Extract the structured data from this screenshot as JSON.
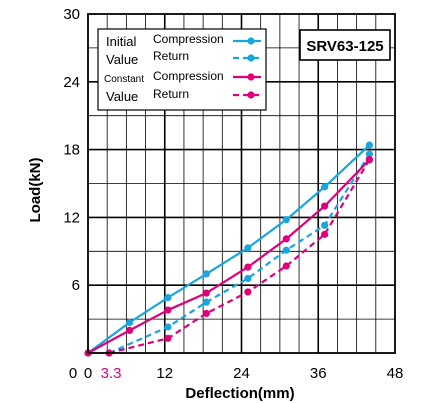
{
  "chart_data": {
    "type": "line",
    "title": "",
    "badge": "SRV63-125",
    "xlabel": "Deflection(mm)",
    "ylabel": "Load(kN)",
    "xlim": [
      0,
      48
    ],
    "ylim": [
      0,
      30
    ],
    "grid": true,
    "x_major_ticks": [
      0,
      12,
      24,
      36,
      48
    ],
    "x_minor_step": 3,
    "y_ticks": [
      6,
      12,
      18,
      24,
      30
    ],
    "y_minor_step": 3,
    "y_zero_label": "0",
    "x_special_tick": {
      "value": 3.3,
      "label": "3.3",
      "color": "#e0007a"
    },
    "legend": {
      "placement": "top-left",
      "groups": [
        {
          "label_line1": "Initial",
          "label_line2": "Value"
        },
        {
          "label_line1": "Constant",
          "label_line2": "Value"
        }
      ]
    },
    "series": [
      {
        "group": 0,
        "name": "Compression",
        "color": "#17a6e0",
        "dash": false,
        "x": [
          0,
          6.5,
          12.5,
          18.5,
          25,
          31,
          37,
          44
        ],
        "y": [
          0,
          2.7,
          4.9,
          7.0,
          9.3,
          11.8,
          14.7,
          18.4
        ]
      },
      {
        "group": 0,
        "name": "Return",
        "color": "#17a6e0",
        "dash": true,
        "x": [
          3.3,
          12.5,
          18.5,
          25,
          31,
          37,
          44
        ],
        "y": [
          0,
          2.3,
          4.5,
          6.6,
          9.1,
          11.3,
          17.6
        ]
      },
      {
        "group": 1,
        "name": "Compression",
        "color": "#e0007a",
        "dash": false,
        "x": [
          0,
          6.5,
          12.5,
          18.5,
          25,
          31,
          37,
          44
        ],
        "y": [
          0,
          2.0,
          3.8,
          5.3,
          7.6,
          10.1,
          13.0,
          17.1
        ]
      },
      {
        "group": 1,
        "name": "Return",
        "color": "#e0007a",
        "dash": true,
        "x": [
          3.3,
          12.5,
          18.5,
          25,
          31,
          37,
          44
        ],
        "y": [
          0,
          1.3,
          3.5,
          5.4,
          7.7,
          10.5,
          17.1
        ]
      }
    ]
  }
}
